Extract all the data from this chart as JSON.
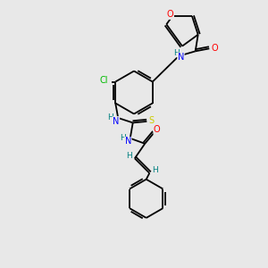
{
  "bg_color": "#e8e8e8",
  "bond_color": "#000000",
  "atom_colors": {
    "O": "#ff0000",
    "N": "#0000ff",
    "Cl": "#00bb00",
    "S": "#cccc00",
    "H": "#008080",
    "C": "#000000"
  }
}
